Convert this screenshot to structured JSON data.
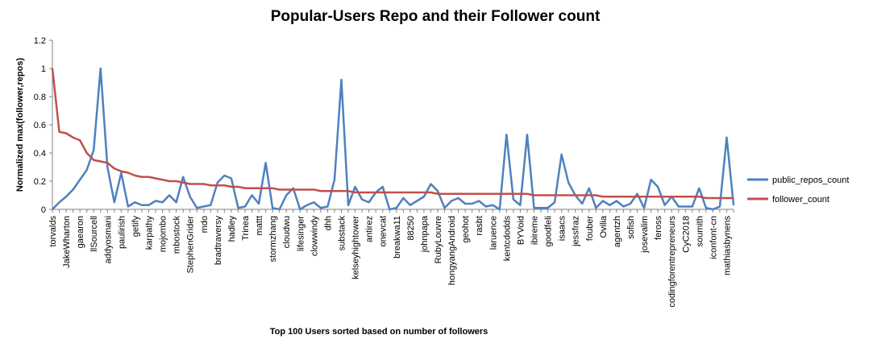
{
  "chart_data": {
    "type": "line",
    "title": "Popular-Users Repo and their Follower count",
    "xlabel": "Top 100 Users sorted based on number of followers",
    "ylabel": "Normalized max(follower,repos)",
    "ylim": [
      0,
      1.2
    ],
    "yticks": [
      "0",
      "0.2",
      "0.4",
      "0.6",
      "0.8",
      "1",
      "1.2"
    ],
    "grid": false,
    "legend_position": "right",
    "categories": [
      "torvalds",
      "",
      "JakeWharton",
      "",
      "gaearon",
      "",
      "llSourcell",
      "",
      "addyosmani",
      "",
      "paulirish",
      "",
      "getify",
      "",
      "karpathy",
      "",
      "mojombo",
      "",
      "mbostock",
      "",
      "StephenGrider",
      "",
      "mdo",
      "",
      "bradtraversy",
      "",
      "hadley",
      "",
      "Trinea",
      "",
      "mattt",
      "",
      "stormzhang",
      "",
      "cloudwu",
      "",
      "lifesinger",
      "",
      "clowwindy",
      "",
      "dhh",
      "",
      "substack",
      "",
      "kelseyhightower",
      "",
      "antirez",
      "",
      "onevcat",
      "",
      "breakwa11",
      "",
      "88250",
      "",
      "johnpapa",
      "",
      "RubyLouvre",
      "",
      "hongyangAndroid",
      "",
      "geohot",
      "",
      "rasbt",
      "",
      "laruence",
      "",
      "kentcdodds",
      "",
      "BYVoid",
      "",
      "ibireme",
      "",
      "goodfeli",
      "",
      "isaacs",
      "",
      "jessfraz",
      "",
      "fouber",
      "",
      "Ovilia",
      "",
      "agentzh",
      "",
      "sofish",
      "",
      "josevalim",
      "",
      "feross",
      "",
      "codingforentrepreneurs",
      "",
      "CyC2018",
      "",
      "soumith",
      "",
      "iconfont-cn",
      "",
      "mathiasbynens",
      ""
    ],
    "series": [
      {
        "name": "public_repos_count",
        "color": "#4f81bd",
        "values": [
          0.0,
          0.05,
          0.09,
          0.14,
          0.21,
          0.28,
          0.42,
          1.0,
          0.3,
          0.05,
          0.26,
          0.02,
          0.05,
          0.03,
          0.03,
          0.06,
          0.05,
          0.1,
          0.05,
          0.23,
          0.09,
          0.01,
          0.02,
          0.03,
          0.19,
          0.24,
          0.22,
          0.01,
          0.02,
          0.1,
          0.04,
          0.33,
          0.01,
          0.0,
          0.1,
          0.15,
          0.0,
          0.03,
          0.05,
          0.01,
          0.02,
          0.21,
          0.92,
          0.03,
          0.16,
          0.07,
          0.05,
          0.12,
          0.16,
          0.0,
          0.01,
          0.08,
          0.03,
          0.06,
          0.09,
          0.18,
          0.13,
          0.01,
          0.06,
          0.08,
          0.04,
          0.04,
          0.06,
          0.02,
          0.03,
          0.0,
          0.53,
          0.07,
          0.03,
          0.53,
          0.01,
          0.01,
          0.01,
          0.05,
          0.39,
          0.19,
          0.1,
          0.04,
          0.15,
          0.01,
          0.06,
          0.03,
          0.06,
          0.02,
          0.04,
          0.11,
          0.01,
          0.21,
          0.16,
          0.03,
          0.09,
          0.02,
          0.02,
          0.02,
          0.15,
          0.01,
          0.0,
          0.02,
          0.51,
          0.03
        ]
      },
      {
        "name": "follower_count",
        "color": "#c0504d",
        "values": [
          1.0,
          0.55,
          0.54,
          0.51,
          0.49,
          0.4,
          0.35,
          0.34,
          0.33,
          0.29,
          0.27,
          0.26,
          0.24,
          0.23,
          0.23,
          0.22,
          0.21,
          0.2,
          0.2,
          0.19,
          0.18,
          0.18,
          0.18,
          0.17,
          0.17,
          0.17,
          0.16,
          0.16,
          0.15,
          0.15,
          0.15,
          0.15,
          0.15,
          0.14,
          0.14,
          0.14,
          0.14,
          0.14,
          0.14,
          0.13,
          0.13,
          0.13,
          0.13,
          0.13,
          0.12,
          0.12,
          0.12,
          0.12,
          0.12,
          0.12,
          0.12,
          0.12,
          0.12,
          0.12,
          0.12,
          0.12,
          0.11,
          0.11,
          0.11,
          0.11,
          0.11,
          0.11,
          0.11,
          0.11,
          0.11,
          0.11,
          0.11,
          0.11,
          0.11,
          0.11,
          0.1,
          0.1,
          0.1,
          0.1,
          0.1,
          0.1,
          0.1,
          0.1,
          0.1,
          0.1,
          0.09,
          0.09,
          0.09,
          0.09,
          0.09,
          0.09,
          0.09,
          0.09,
          0.09,
          0.09,
          0.09,
          0.09,
          0.09,
          0.09,
          0.09,
          0.08,
          0.08,
          0.08,
          0.08,
          0.08
        ]
      }
    ]
  }
}
